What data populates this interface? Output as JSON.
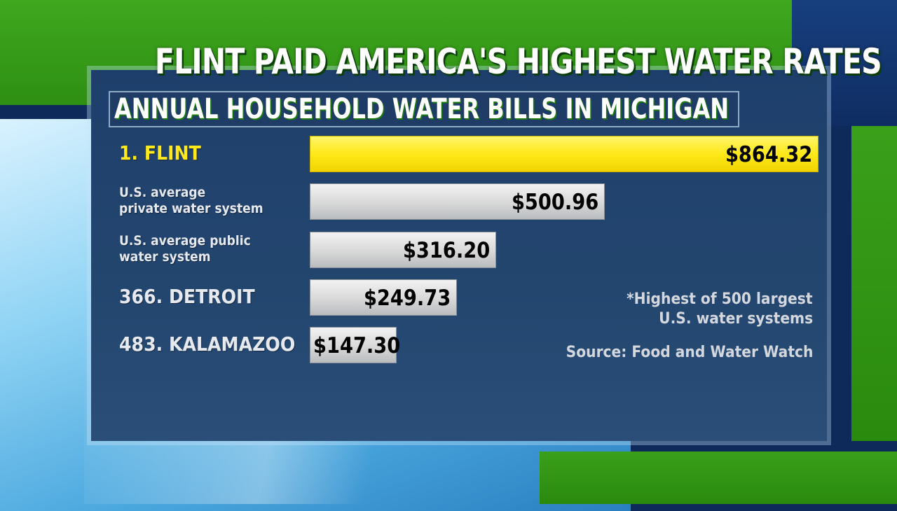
{
  "title": "FLINT PAID AMERICA'S HIGHEST WATER RATES",
  "subtitle": "ANNUAL HOUSEHOLD WATER BILLS IN MICHIGAN",
  "colors": {
    "highlight_bar": "#ffe91a",
    "default_bar": "#d8d8d8",
    "panel": "#1e3f6b",
    "accent_green": "#2e8f12"
  },
  "chart_data": {
    "type": "bar",
    "orientation": "horizontal",
    "categories": [
      "1. FLINT",
      "U.S. average private water system",
      "U.S. average public water system",
      "366. DETROIT",
      "483. KALAMAZOO"
    ],
    "label_lines": [
      [
        "1. FLINT"
      ],
      [
        "U.S. average",
        "private water system"
      ],
      [
        "U.S. average public",
        "water system"
      ],
      [
        "366. DETROIT"
      ],
      [
        "483. KALAMAZOO"
      ]
    ],
    "values": [
      864.32,
      500.96,
      316.2,
      249.73,
      147.3
    ],
    "value_labels": [
      "$864.32",
      "$500.96",
      "$316.20",
      "$249.73",
      "$147.30"
    ],
    "highlight_index": 0,
    "title": "FLINT PAID AMERICA'S HIGHEST WATER RATES",
    "subtitle": "ANNUAL HOUSEHOLD WATER BILLS IN MICHIGAN",
    "xlabel": "",
    "ylabel": "",
    "grid": false,
    "annotations": [
      "*Highest of 500 largest",
      "U.S. water systems"
    ],
    "source": "Source: Food and Water Watch"
  }
}
